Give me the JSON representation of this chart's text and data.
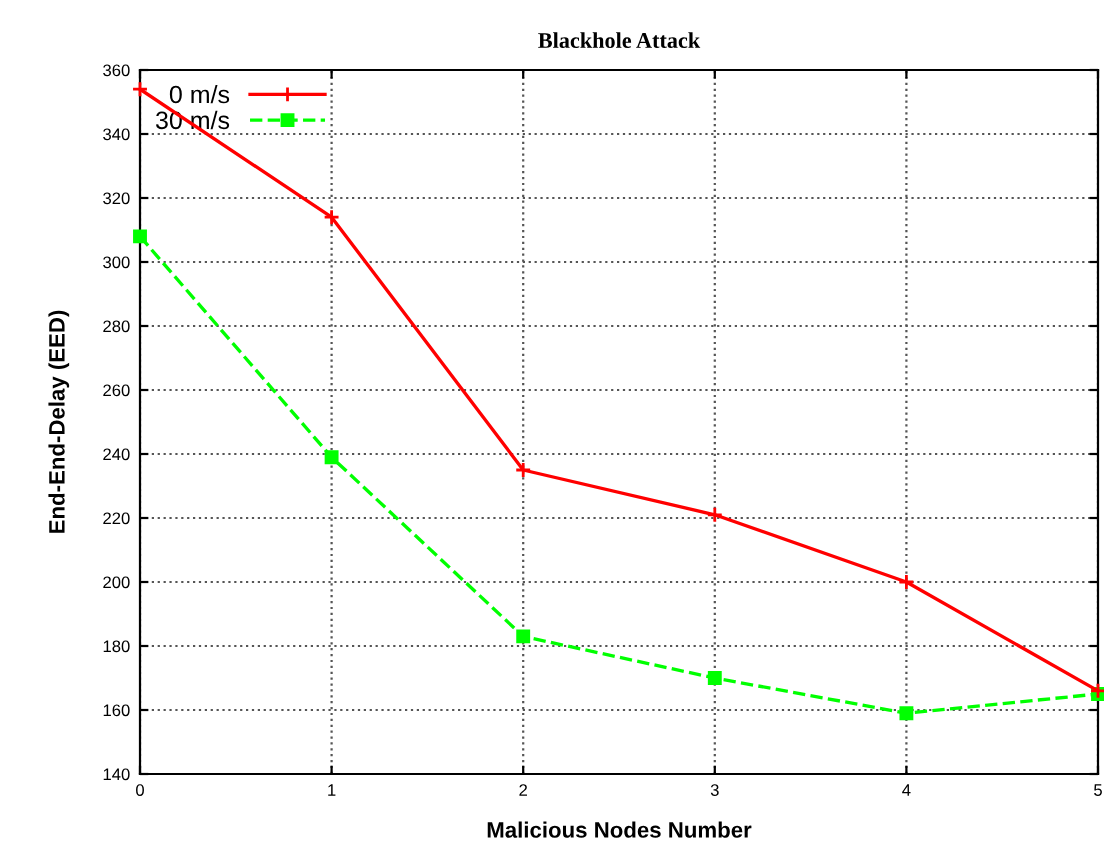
{
  "chart_data": {
    "type": "line",
    "title": "Blackhole Attack",
    "xlabel": "Malicious Nodes Number",
    "ylabel": "End-End-Delay (EED)",
    "x": [
      0,
      1,
      2,
      3,
      4,
      5
    ],
    "series": [
      {
        "name": "0 m/s",
        "color": "#ff0000",
        "values": [
          354,
          314,
          235,
          221,
          200,
          166
        ],
        "marker": "cross",
        "line_style": "solid"
      },
      {
        "name": "30 m/s",
        "color": "#00ff00",
        "values": [
          308,
          239,
          183,
          170,
          159,
          165
        ],
        "marker": "square",
        "line_style": "dashed"
      }
    ],
    "xlim": [
      0,
      5
    ],
    "xticks": [
      0,
      1,
      2,
      3,
      4,
      5
    ],
    "ylim": [
      140,
      360
    ],
    "yticks": [
      140,
      160,
      180,
      200,
      220,
      240,
      260,
      280,
      300,
      320,
      340,
      360
    ],
    "grid": true,
    "legend": "top left"
  }
}
